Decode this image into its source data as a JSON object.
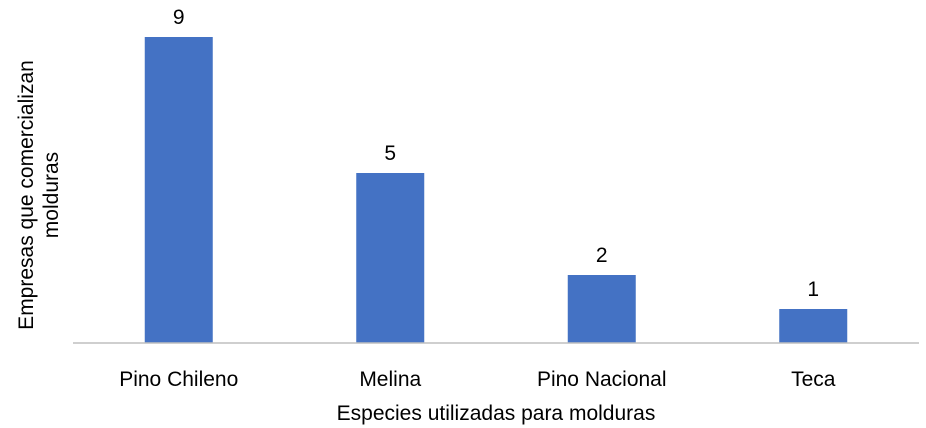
{
  "chart_data": {
    "type": "bar",
    "title": "",
    "xlabel": "Especies utilizadas para molduras",
    "ylabel_lines": [
      "Empresas que comercializan",
      "molduras"
    ],
    "categories": [
      "Pino Chileno",
      "Melina",
      "Pino Nacional",
      "Teca"
    ],
    "values": [
      9,
      5,
      2,
      1
    ],
    "ylim": [
      0,
      10
    ],
    "grid": false,
    "legend": "none",
    "bar_color": "#4472C4",
    "axis_color": "#BFBFBF"
  }
}
